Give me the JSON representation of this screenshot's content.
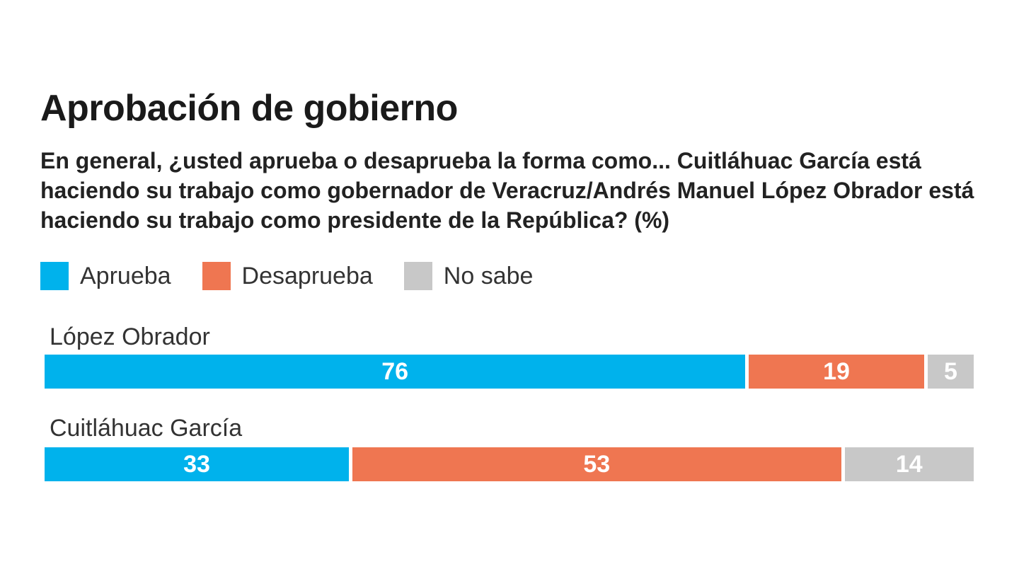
{
  "colors": {
    "aprueba": "#00b2ec",
    "desaprueba": "#ef7651",
    "no_sabe": "#c8c8c8"
  },
  "chart_data": {
    "type": "bar",
    "orientation": "horizontal",
    "stacked": true,
    "title": "Aprobación de gobierno",
    "subtitle": "En general, ¿usted aprueba o desaprueba la forma como... Cuitláhuac García está haciendo su trabajo como gobernador de Veracruz/Andrés Manuel López Obrador está haciendo su trabajo como presidente de la República? (%)",
    "legend": [
      "Aprueba",
      "Desaprueba",
      "No sabe"
    ],
    "legend_position": "top-left",
    "categories": [
      "López Obrador",
      "Cuitláhuac García"
    ],
    "series": [
      {
        "name": "Aprueba",
        "values": [
          76,
          33
        ]
      },
      {
        "name": "Desaprueba",
        "values": [
          19,
          53
        ]
      },
      {
        "name": "No sabe",
        "values": [
          5,
          14
        ]
      }
    ],
    "xlim": [
      0,
      100
    ],
    "grid": false
  }
}
